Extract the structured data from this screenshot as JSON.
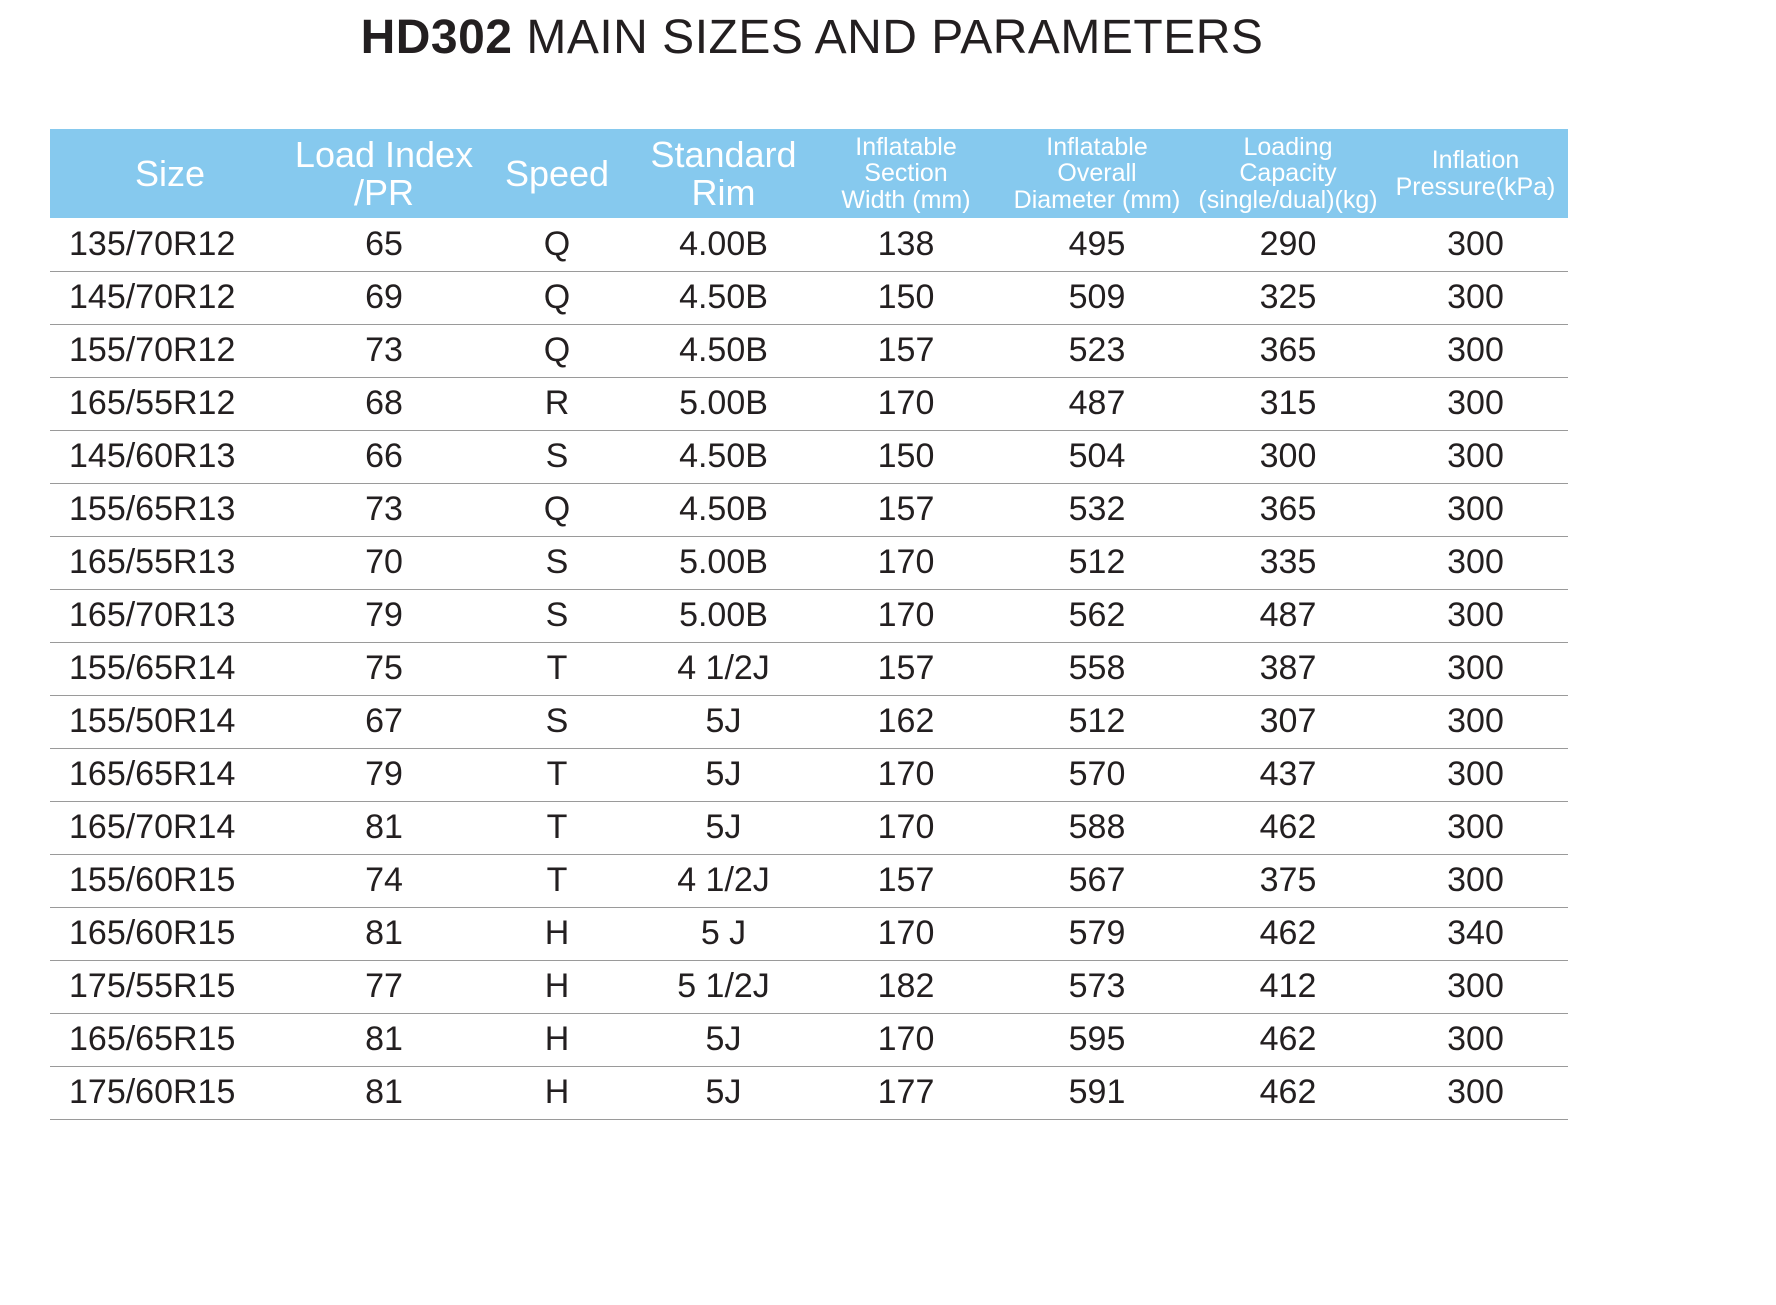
{
  "title": {
    "bold": "HD302",
    "rest": " MAIN SIZES AND PARAMETERS"
  },
  "table": {
    "headers": [
      "Size",
      "Load Index\n/PR",
      "Speed",
      "Standard\nRim",
      "Inflatable\nSection\nWidth (mm)",
      "Inflatable\nOverall\nDiameter (mm)",
      "Loading\nCapacity\n(single/dual)(kg)",
      "Inflation\nPressure(kPa)"
    ],
    "rows": [
      [
        "135/70R12",
        "65",
        "Q",
        "4.00B",
        "138",
        "495",
        "290",
        "300"
      ],
      [
        "145/70R12",
        "69",
        "Q",
        "4.50B",
        "150",
        "509",
        "325",
        "300"
      ],
      [
        "155/70R12",
        "73",
        "Q",
        "4.50B",
        "157",
        "523",
        "365",
        "300"
      ],
      [
        "165/55R12",
        "68",
        "R",
        "5.00B",
        "170",
        "487",
        "315",
        "300"
      ],
      [
        "145/60R13",
        "66",
        "S",
        "4.50B",
        "150",
        "504",
        "300",
        "300"
      ],
      [
        "155/65R13",
        "73",
        "Q",
        "4.50B",
        "157",
        "532",
        "365",
        "300"
      ],
      [
        "165/55R13",
        "70",
        "S",
        "5.00B",
        "170",
        "512",
        "335",
        "300"
      ],
      [
        "165/70R13",
        "79",
        "S",
        "5.00B",
        "170",
        "562",
        "487",
        "300"
      ],
      [
        "155/65R14",
        "75",
        "T",
        "4 1/2J",
        "157",
        "558",
        "387",
        "300"
      ],
      [
        "155/50R14",
        "67",
        "S",
        "5J",
        "162",
        "512",
        "307",
        "300"
      ],
      [
        "165/65R14",
        "79",
        "T",
        "5J",
        "170",
        "570",
        "437",
        "300"
      ],
      [
        "165/70R14",
        "81",
        "T",
        "5J",
        "170",
        "588",
        "462",
        "300"
      ],
      [
        "155/60R15",
        "74",
        "T",
        "4 1/2J",
        "157",
        "567",
        "375",
        "300"
      ],
      [
        "165/60R15",
        "81",
        "H",
        "5 J",
        "170",
        "579",
        "462",
        "340"
      ],
      [
        "175/55R15",
        "77",
        "H",
        "5 1/2J",
        "182",
        "573",
        "412",
        "300"
      ],
      [
        "165/65R15",
        "81",
        "H",
        "5J",
        "170",
        "595",
        "462",
        "300"
      ],
      [
        "175/60R15",
        "81",
        "H",
        "5J",
        "177",
        "591",
        "462",
        "300"
      ]
    ]
  },
  "colors": {
    "header_bg": "#86c9ee",
    "header_text": "#ffffff",
    "text": "#231f20",
    "row_rule": "#9a9a9a"
  }
}
